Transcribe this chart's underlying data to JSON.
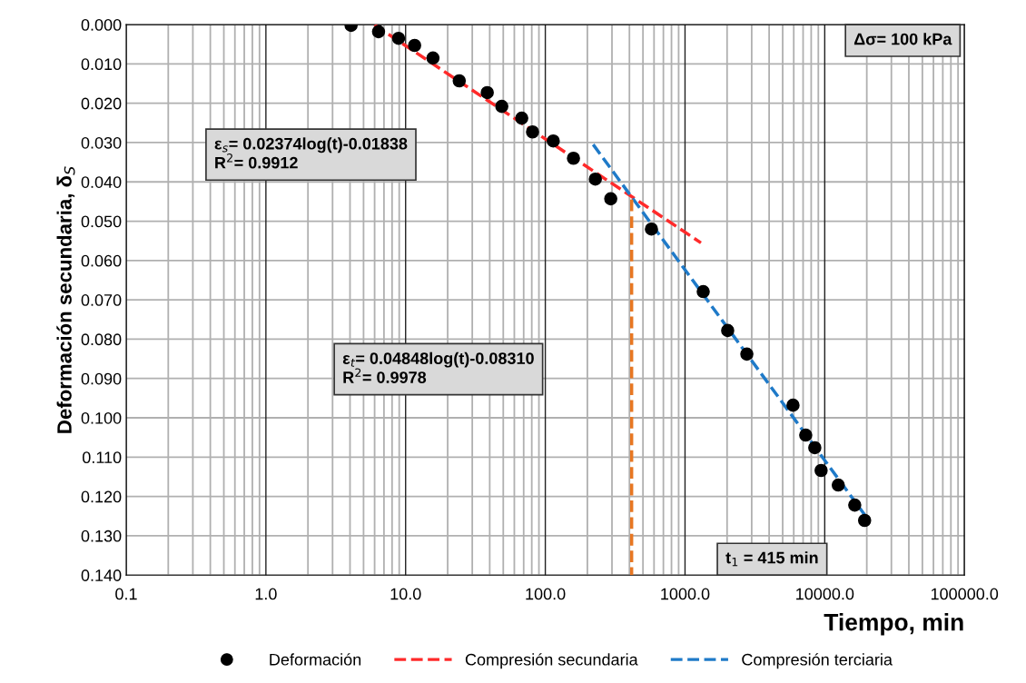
{
  "chart_data": {
    "type": "scatter",
    "xlabel": "Tiempo, min",
    "ylabel": "Deformación secundaria, δ$_{S}$",
    "log": "x",
    "xlim": [
      0.1,
      100000.0
    ],
    "xticks": [
      {
        "value": 0.1,
        "label": "0.1"
      },
      {
        "value": 1,
        "label": "1.0"
      },
      {
        "value": 10,
        "label": "10.0"
      },
      {
        "value": 100,
        "label": "100.0"
      },
      {
        "value": 1000,
        "label": "1000.0"
      },
      {
        "value": 10000,
        "label": "10000.0"
      },
      {
        "value": 100000,
        "label": "100000.0"
      }
    ],
    "ylim": [
      0.14,
      0.0
    ],
    "yticks": [
      {
        "value": 0.0,
        "label": "0.000"
      },
      {
        "value": 0.01,
        "label": "0.010"
      },
      {
        "value": 0.02,
        "label": "0.020"
      },
      {
        "value": 0.03,
        "label": "0.030"
      },
      {
        "value": 0.04,
        "label": "0.040"
      },
      {
        "value": 0.05,
        "label": "0.050"
      },
      {
        "value": 0.06,
        "label": "0.060"
      },
      {
        "value": 0.07,
        "label": "0.070"
      },
      {
        "value": 0.08,
        "label": "0.080"
      },
      {
        "value": 0.09,
        "label": "0.090"
      },
      {
        "value": 0.1,
        "label": "0.100"
      },
      {
        "value": 0.11,
        "label": "0.110"
      },
      {
        "value": 0.12,
        "label": "0.120"
      },
      {
        "value": 0.13,
        "label": "0.130"
      },
      {
        "value": 0.14,
        "label": "0.140"
      }
    ],
    "grid": true,
    "legend": "bottom",
    "series": [
      {
        "name": "Deformación",
        "marker": "circle",
        "color": "#000000",
        "x": [
          4.07,
          6.4,
          8.9,
          11.6,
          15.7,
          24.2,
          38.4,
          48.8,
          67.8,
          81,
          114,
          159,
          228,
          294,
          575,
          1350,
          2020,
          2770,
          5930,
          7310,
          8490,
          9420,
          12500,
          16400,
          19300
        ],
        "values": [
          0.0002,
          0.0018,
          0.0035,
          0.0053,
          0.0085,
          0.0143,
          0.0173,
          0.0208,
          0.0238,
          0.0273,
          0.0296,
          0.034,
          0.0393,
          0.0443,
          0.052,
          0.0679,
          0.0778,
          0.0838,
          0.0968,
          0.1044,
          0.1076,
          0.1134,
          0.1171,
          0.1222,
          0.1261
        ]
      },
      {
        "name": "Compresión secundaria",
        "type": "line",
        "line_style": "dashed",
        "color": "#ff2a2a",
        "x": [
          6,
          1300
        ],
        "values": [
          0.0001,
          0.0555
        ]
      },
      {
        "name": "Compresión terciaria",
        "type": "line",
        "line_style": "dashed",
        "color": "#1f7ac8",
        "x": [
          220,
          20000
        ],
        "values": [
          0.0305,
          0.1254
        ]
      },
      {
        "type": "line",
        "line_style": "dashed",
        "color": "#e87722",
        "x": [
          415,
          415
        ],
        "values": [
          0.0445,
          0.14
        ]
      }
    ],
    "annotations": [
      "Δσ= 100 kPa",
      "ε$_{s}$= 0.02374log(t)-0.01838\nR$^{2}$= 0.9912",
      "ε$_{t}$= 0.04848log(t)-0.08310\nR$^{2}$= 0.9978",
      "t$_{1}$ = 415 min"
    ]
  }
}
